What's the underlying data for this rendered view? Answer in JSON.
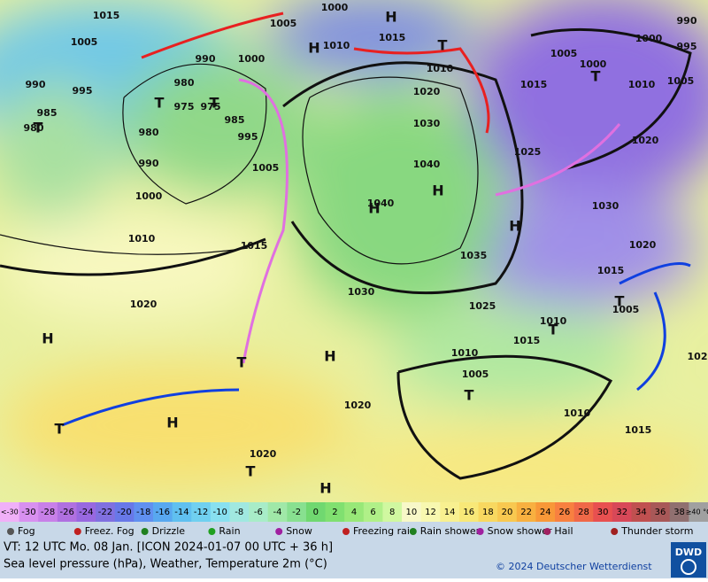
{
  "map": {
    "isobar_labels": [
      "1015",
      "1005",
      "1005",
      "1000",
      "990",
      "995",
      "985",
      "980",
      "980",
      "975",
      "975",
      "985",
      "980",
      "990",
      "995",
      "1000",
      "1005",
      "1010",
      "1015",
      "1020",
      "1000",
      "990",
      "1010",
      "1015",
      "1010",
      "1020",
      "1030",
      "1040",
      "1040",
      "1035",
      "1030",
      "1025",
      "1020",
      "1020",
      "1010",
      "1005",
      "1015",
      "1010",
      "1010",
      "1015",
      "1005",
      "1015",
      "1020",
      "1030",
      "1025",
      "1020",
      "1010",
      "1005",
      "1000",
      "1005",
      "1015",
      "1000",
      "995",
      "990",
      "102"
    ],
    "centers": [
      "H",
      "H",
      "H",
      "H",
      "H",
      "H",
      "H",
      "H",
      "H",
      "T",
      "T",
      "T",
      "T",
      "T",
      "T",
      "T",
      "T",
      "T",
      "T",
      "T"
    ]
  },
  "color_scale": {
    "labels": [
      "<-30",
      "-30",
      "-28",
      "-26",
      "-24",
      "-22",
      "-20",
      "-18",
      "-16",
      "-14",
      "-12",
      "-10",
      "-8",
      "-6",
      "-4",
      "-2",
      "0",
      "2",
      "4",
      "6",
      "8",
      "10",
      "12",
      "14",
      "16",
      "18",
      "20",
      "22",
      "24",
      "26",
      "28",
      "30",
      "32",
      "34",
      "36",
      "38",
      "≥40 °C"
    ],
    "colors": [
      "#f0b0f8",
      "#d890f0",
      "#c880e8",
      "#b070e0",
      "#9868e0",
      "#8070e0",
      "#6878e8",
      "#6090f0",
      "#58a8f0",
      "#60c0f0",
      "#70d0f0",
      "#88e0f0",
      "#a0e8e0",
      "#a8ecc8",
      "#a0e8a8",
      "#88e090",
      "#70d870",
      "#80e070",
      "#98e878",
      "#b0f088",
      "#d0f8a0",
      "#f8f8c8",
      "#f8f8b0",
      "#f8f090",
      "#f8e878",
      "#f8d860",
      "#f8c850",
      "#f8b040",
      "#f89838",
      "#f88040",
      "#f06848",
      "#e85050",
      "#d84858",
      "#c05050",
      "#a85858",
      "#907070",
      "#a0a0a0"
    ]
  },
  "weather_legend": [
    "Fog",
    "Freez. Fog",
    "Drizzle",
    "Rain",
    "Snow",
    "Freezing rain",
    "Rain shower",
    "Snow shower",
    "Hail",
    "Thunder storm"
  ],
  "footer": {
    "valid_time": "VT: 12 UTC Mo.   08 Jan. [ICON 2024-01-07  00 UTC + 36 h]",
    "description": "Sea level pressure (hPa), Weather, Temperature 2m (°C)",
    "copyright": "© 2024 Deutscher Wetterdienst",
    "logo": "DWD"
  }
}
